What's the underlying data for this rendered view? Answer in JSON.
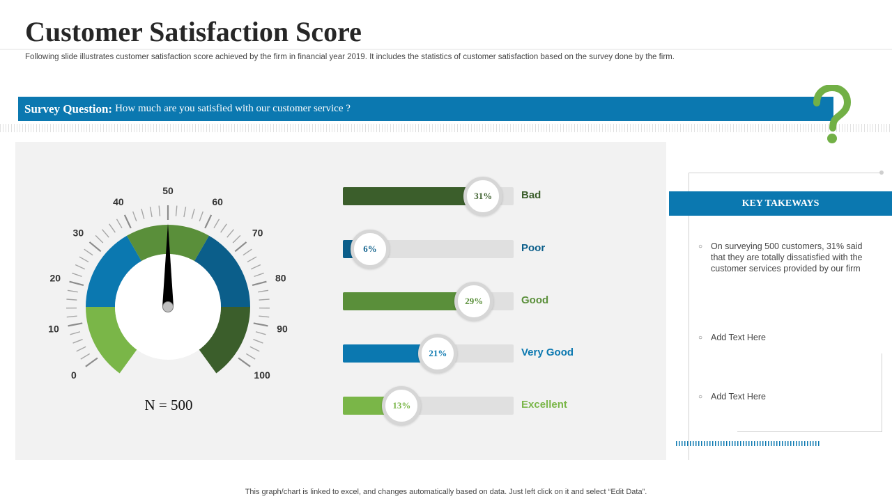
{
  "header": {
    "title": "Customer Satisfaction Score",
    "subtitle": "Following slide illustrates customer satisfaction score achieved by the firm in financial year 2019. It includes the statistics of customer satisfaction based on the survey done by the firm."
  },
  "survey": {
    "label": "Survey Question:",
    "question": "How much  are you satisfied  with  our  customer  service  ?"
  },
  "colors": {
    "accent_blue": "#0b78b0",
    "dark_green": "#3b5e2b",
    "mid_green": "#5a8f3a",
    "light_green": "#7ab648",
    "dark_blue": "#0b5e8a",
    "question_mark": "#72b046"
  },
  "chart_data": [
    {
      "type": "gauge",
      "range": [
        0,
        100
      ],
      "value": 50,
      "tick_labels": [
        "0",
        "10",
        "20",
        "30",
        "40",
        "50",
        "60",
        "70",
        "80",
        "90",
        "100"
      ],
      "annotation": "N = 500",
      "band_colors": [
        "#7ab648",
        "#0b78b0",
        "#5a8f3a",
        "#0b5e8a",
        "#3b5e2b"
      ]
    },
    {
      "type": "bar",
      "orientation": "horizontal",
      "xlim": [
        0,
        100
      ],
      "categories": [
        "Bad",
        "Poor",
        "Good",
        "Very Good",
        "Excellent"
      ],
      "values": [
        31,
        6,
        29,
        21,
        13
      ],
      "value_labels": [
        "31%",
        "6%",
        "29%",
        "21%",
        "13%"
      ],
      "colors": [
        "#3b5e2b",
        "#0b5e8a",
        "#5a8f3a",
        "#0b78b0",
        "#7ab648"
      ]
    }
  ],
  "takeaways": {
    "title": "KEY TAKEWAYS",
    "items": [
      "On surveying  500 customers, 31% said that they are totally dissatisfied with the customer services provided by our firm",
      "Add Text Here",
      "Add Text Here"
    ],
    "bullet": "○"
  },
  "footnote": "This graph/chart is linked to excel,  and changes automatically based on data. Just left click on it and select “Edit Data”."
}
